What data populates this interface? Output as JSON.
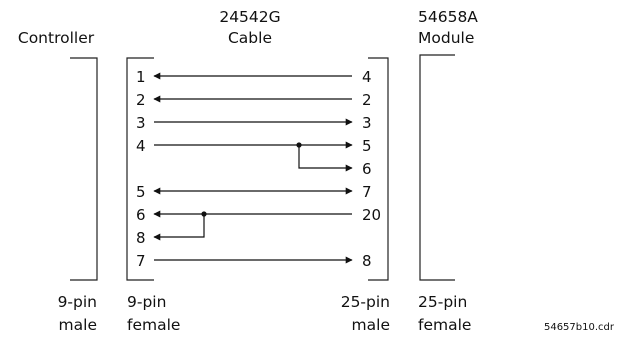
{
  "headers": {
    "controller": "Controller",
    "cable_line1": "24542G",
    "cable_line2": "Cable",
    "module_line1": "54658A",
    "module_line2": "Module"
  },
  "footers": {
    "controller_line1": "9-pin",
    "controller_line2": "male",
    "cable_left_line1": "9-pin",
    "cable_left_line2": "female",
    "cable_right_line1": "25-pin",
    "cable_right_line2": "male",
    "module_line1": "25-pin",
    "module_line2": "female"
  },
  "file_name": "54657b10.cdr",
  "rows": [
    {
      "left": "1",
      "right": "4"
    },
    {
      "left": "2",
      "right": "2"
    },
    {
      "left": "3",
      "right": "3"
    },
    {
      "left": "4",
      "right": "5"
    },
    {
      "left": "",
      "right": "6"
    },
    {
      "left": "5",
      "right": "7"
    },
    {
      "left": "6",
      "right": "20"
    },
    {
      "left": "8",
      "right": ""
    },
    {
      "left": "7",
      "right": "8"
    }
  ],
  "connections": [
    {
      "from": "4",
      "to": "1",
      "direction": "to-left"
    },
    {
      "from": "2",
      "to": "2",
      "direction": "to-left"
    },
    {
      "from": "3",
      "to": "3",
      "direction": "to-right"
    },
    {
      "from": "4",
      "to": "5",
      "direction": "to-right"
    },
    {
      "from": "4",
      "to": "6",
      "direction": "to-right",
      "branch": true
    },
    {
      "from": "5",
      "to": "7",
      "direction": "both"
    },
    {
      "from": "20",
      "to": "6",
      "direction": "to-left"
    },
    {
      "from": "20",
      "to": "8",
      "direction": "to-left",
      "branch": true
    },
    {
      "from": "7",
      "to": "8",
      "direction": "to-right"
    }
  ]
}
